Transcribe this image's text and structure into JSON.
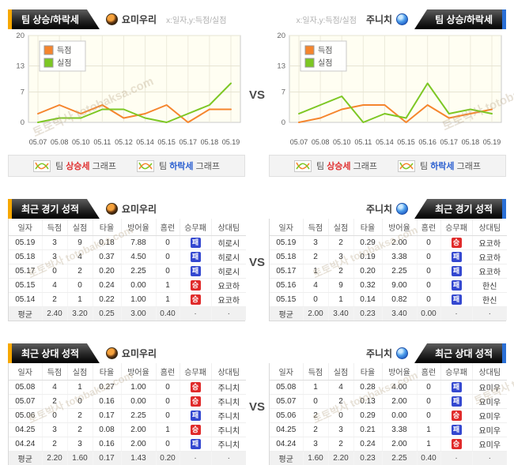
{
  "vs_label": "VS",
  "watermark_text": "토토박사 totobaksa.com",
  "colors": {
    "score_line": "#f5852d",
    "concede_line": "#7dc724",
    "win_badge": "#e02a2a",
    "loss_badge": "#3448d0",
    "left_tab_accent": "#f7a800",
    "right_tab_accent": "#2a6fd6"
  },
  "trend": {
    "tab_title": "팀 상승/하락세",
    "axis_hint": "x:일자,y:득점/실점",
    "left_team": "요미우리",
    "right_team": "주니치",
    "legend_up": {
      "prefix": "팀",
      "keyword": "상승세",
      "suffix": "그래프"
    },
    "legend_down": {
      "prefix": "팀",
      "keyword": "하락세",
      "suffix": "그래프"
    }
  },
  "chart_data": [
    {
      "type": "line",
      "team": "요미우리",
      "x": [
        "05.07",
        "05.08",
        "05.10",
        "05.11",
        "05.12",
        "05.14",
        "05.15",
        "05.17",
        "05.18",
        "05.19"
      ],
      "series": [
        {
          "name": "득점",
          "color": "#f5852d",
          "values": [
            2,
            4,
            2,
            4,
            1,
            2,
            4,
            0,
            3,
            3
          ]
        },
        {
          "name": "실점",
          "color": "#7dc724",
          "values": [
            0,
            1,
            1,
            3,
            3,
            1,
            0,
            2,
            4,
            9
          ]
        }
      ],
      "ylim": [
        0,
        20
      ],
      "yticks": [
        0,
        7,
        13,
        20
      ],
      "grid": true,
      "legend_position": "top-left"
    },
    {
      "type": "line",
      "team": "주니치",
      "x": [
        "05.07",
        "05.08",
        "05.10",
        "05.11",
        "05.14",
        "05.15",
        "05.16",
        "05.17",
        "05.18",
        "05.19"
      ],
      "series": [
        {
          "name": "득점",
          "color": "#f5852d",
          "values": [
            0,
            1,
            3,
            4,
            4,
            0,
            4,
            1,
            2,
            3
          ]
        },
        {
          "name": "실점",
          "color": "#7dc724",
          "values": [
            2,
            4,
            6,
            0,
            2,
            1,
            9,
            2,
            3,
            2
          ]
        }
      ],
      "ylim": [
        0,
        20
      ],
      "yticks": [
        0,
        7,
        13,
        20
      ],
      "grid": true,
      "legend_position": "top-left"
    }
  ],
  "recent": {
    "title": "최근 경기 성적",
    "columns": [
      "일자",
      "득점",
      "실점",
      "타율",
      "방어율",
      "홈런",
      "승무패",
      "상대팀"
    ],
    "left": {
      "team": "요미우리",
      "rows": [
        {
          "date": "05.19",
          "score": "3",
          "concede": "9",
          "avg": "0.18",
          "era": "7.88",
          "hr": "0",
          "result": "패",
          "result_type": "loss",
          "opponent": "히로시"
        },
        {
          "date": "05.18",
          "score": "3",
          "concede": "4",
          "avg": "0.37",
          "era": "4.50",
          "hr": "0",
          "result": "패",
          "result_type": "loss",
          "opponent": "히로시"
        },
        {
          "date": "05.17",
          "score": "0",
          "concede": "2",
          "avg": "0.20",
          "era": "2.25",
          "hr": "0",
          "result": "패",
          "result_type": "loss",
          "opponent": "히로시"
        },
        {
          "date": "05.15",
          "score": "4",
          "concede": "0",
          "avg": "0.24",
          "era": "0.00",
          "hr": "1",
          "result": "승",
          "result_type": "win",
          "opponent": "요코하"
        },
        {
          "date": "05.14",
          "score": "2",
          "concede": "1",
          "avg": "0.22",
          "era": "1.00",
          "hr": "1",
          "result": "승",
          "result_type": "win",
          "opponent": "요코하"
        }
      ],
      "average": {
        "label": "평균",
        "score": "2.40",
        "concede": "3.20",
        "avg": "0.25",
        "era": "3.00",
        "hr": "0.40",
        "result": "·",
        "opponent": "·"
      }
    },
    "right": {
      "team": "주니치",
      "rows": [
        {
          "date": "05.19",
          "score": "3",
          "concede": "2",
          "avg": "0.29",
          "era": "2.00",
          "hr": "0",
          "result": "승",
          "result_type": "win",
          "opponent": "요코하"
        },
        {
          "date": "05.18",
          "score": "2",
          "concede": "3",
          "avg": "0.19",
          "era": "3.38",
          "hr": "0",
          "result": "패",
          "result_type": "loss",
          "opponent": "요코하"
        },
        {
          "date": "05.17",
          "score": "1",
          "concede": "2",
          "avg": "0.20",
          "era": "2.25",
          "hr": "0",
          "result": "패",
          "result_type": "loss",
          "opponent": "요코하"
        },
        {
          "date": "05.16",
          "score": "4",
          "concede": "9",
          "avg": "0.32",
          "era": "9.00",
          "hr": "0",
          "result": "패",
          "result_type": "loss",
          "opponent": "한신"
        },
        {
          "date": "05.15",
          "score": "0",
          "concede": "1",
          "avg": "0.14",
          "era": "0.82",
          "hr": "0",
          "result": "패",
          "result_type": "loss",
          "opponent": "한신"
        }
      ],
      "average": {
        "label": "평균",
        "score": "2.00",
        "concede": "3.40",
        "avg": "0.23",
        "era": "3.40",
        "hr": "0.00",
        "result": "·",
        "opponent": "·"
      }
    }
  },
  "h2h": {
    "title": "최근 상대 성적",
    "columns": [
      "일자",
      "득점",
      "실점",
      "타율",
      "방어율",
      "홈런",
      "승무패",
      "상대팀"
    ],
    "left": {
      "team": "요미우리",
      "rows": [
        {
          "date": "05.08",
          "score": "4",
          "concede": "1",
          "avg": "0.27",
          "era": "1.00",
          "hr": "0",
          "result": "승",
          "result_type": "win",
          "opponent": "주니치"
        },
        {
          "date": "05.07",
          "score": "2",
          "concede": "0",
          "avg": "0.16",
          "era": "0.00",
          "hr": "0",
          "result": "승",
          "result_type": "win",
          "opponent": "주니치"
        },
        {
          "date": "05.06",
          "score": "0",
          "concede": "2",
          "avg": "0.17",
          "era": "2.25",
          "hr": "0",
          "result": "패",
          "result_type": "loss",
          "opponent": "주니치"
        },
        {
          "date": "04.25",
          "score": "3",
          "concede": "2",
          "avg": "0.08",
          "era": "2.00",
          "hr": "1",
          "result": "승",
          "result_type": "win",
          "opponent": "주니치"
        },
        {
          "date": "04.24",
          "score": "2",
          "concede": "3",
          "avg": "0.16",
          "era": "2.00",
          "hr": "0",
          "result": "패",
          "result_type": "loss",
          "opponent": "주니치"
        }
      ],
      "average": {
        "label": "평균",
        "score": "2.20",
        "concede": "1.60",
        "avg": "0.17",
        "era": "1.43",
        "hr": "0.20",
        "result": "·",
        "opponent": "·"
      }
    },
    "right": {
      "team": "주니치",
      "rows": [
        {
          "date": "05.08",
          "score": "1",
          "concede": "4",
          "avg": "0.28",
          "era": "4.00",
          "hr": "0",
          "result": "패",
          "result_type": "loss",
          "opponent": "요미우"
        },
        {
          "date": "05.07",
          "score": "0",
          "concede": "2",
          "avg": "0.13",
          "era": "2.00",
          "hr": "0",
          "result": "패",
          "result_type": "loss",
          "opponent": "요미우"
        },
        {
          "date": "05.06",
          "score": "2",
          "concede": "0",
          "avg": "0.29",
          "era": "0.00",
          "hr": "0",
          "result": "승",
          "result_type": "win",
          "opponent": "요미우"
        },
        {
          "date": "04.25",
          "score": "2",
          "concede": "3",
          "avg": "0.21",
          "era": "3.38",
          "hr": "1",
          "result": "패",
          "result_type": "loss",
          "opponent": "요미우"
        },
        {
          "date": "04.24",
          "score": "3",
          "concede": "2",
          "avg": "0.24",
          "era": "2.00",
          "hr": "1",
          "result": "승",
          "result_type": "win",
          "opponent": "요미우"
        }
      ],
      "average": {
        "label": "평균",
        "score": "1.60",
        "concede": "2.20",
        "avg": "0.23",
        "era": "2.25",
        "hr": "0.40",
        "result": "·",
        "opponent": "·"
      }
    }
  }
}
